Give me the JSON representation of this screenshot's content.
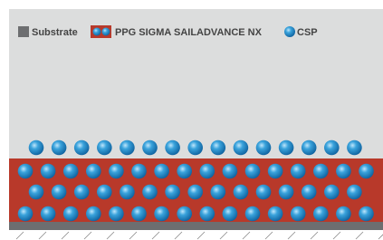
{
  "legend": {
    "items": [
      {
        "label": "Substrate"
      },
      {
        "label": "PPG SIGMA SAILADVANCE NX"
      },
      {
        "label": "CSP"
      }
    ]
  }
}
